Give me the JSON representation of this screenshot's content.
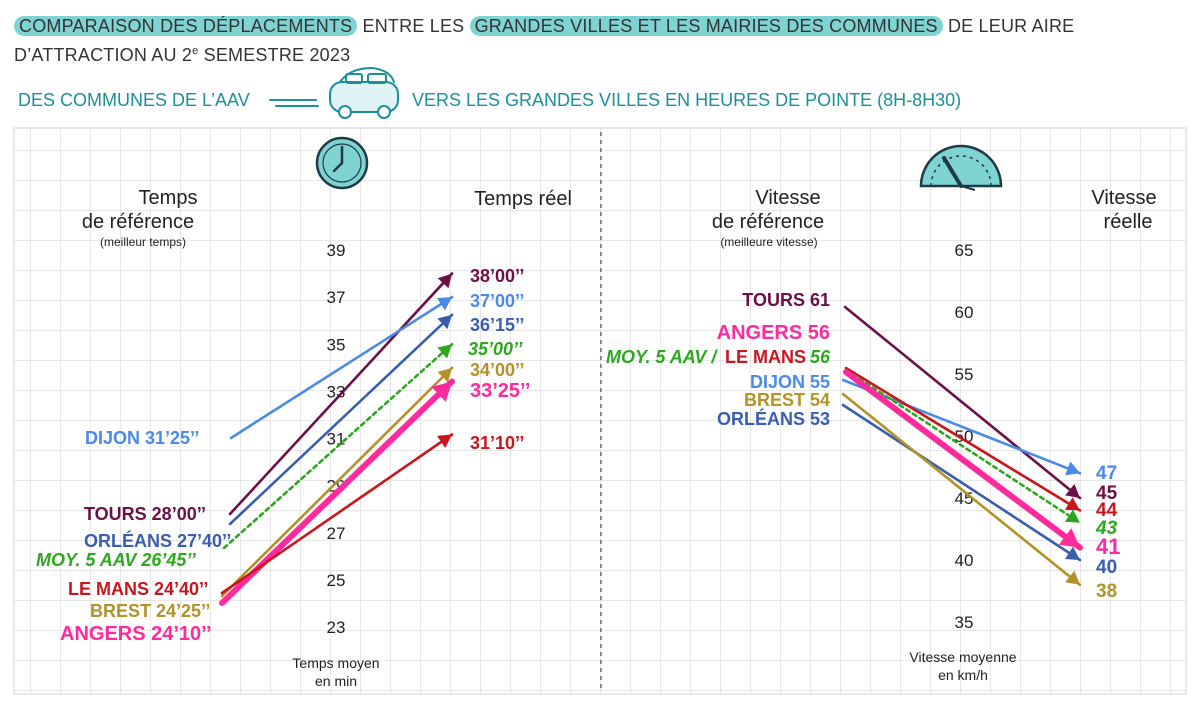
{
  "title": {
    "part1": "COMPARAISON DES DÉPLACEMENTS",
    "part2": " ENTRE LES ",
    "part3": "GRANDES VILLES ET LES MAIRIES DES COMMUNES",
    "part4": " DE LEUR AIRE D’ATTRACTION AU 2",
    "sup": "e",
    "part5": " SEMESTRE 2023"
  },
  "subtitle": {
    "left": "DES COMMUNES DE L’AAV",
    "right": "VERS LES GRANDES VILLES EN HEURES DE POINTE (8H-8H30)"
  },
  "icons": [
    "car-icon",
    "clock-icon",
    "speedometer-icon"
  ],
  "colors": {
    "tours": "#6b1046",
    "angers": "#ff2a9e",
    "moy": "#2da81e",
    "le_mans": "#c8161d",
    "dijon": "#4a8ae8",
    "brest": "#b3922a",
    "orleans": "#3a5dae",
    "accent": "#1b8f9a",
    "highlight": "#7fd3d3"
  },
  "chart_data": [
    {
      "type": "line",
      "headers": {
        "left_title": [
          "Temps",
          "de référence"
        ],
        "left_sub": "(meilleur temps)",
        "right_title": "Temps réel",
        "axis_label": [
          "Temps moyen",
          "en min"
        ]
      },
      "ylim": [
        23,
        39
      ],
      "ticks": [
        "39",
        "37",
        "35",
        "33",
        "31",
        "29",
        "27",
        "25",
        "23"
      ],
      "series": [
        {
          "key": "tours",
          "name": "TOURS",
          "start": 28.0,
          "end": 38.0,
          "start_label": "TOURS 28’00’’",
          "end_label": "38’00’’"
        },
        {
          "key": "dijon",
          "name": "DIJON",
          "start": 31.42,
          "end": 37.0,
          "start_label": "DIJON 31’25’’",
          "end_label": "37’00’’"
        },
        {
          "key": "orleans",
          "name": "ORLÉANS",
          "start": 27.67,
          "end": 36.25,
          "start_label": "ORLÉANS 27’40’’",
          "end_label": "36’15’’"
        },
        {
          "key": "moy",
          "name": "MOY. 5 AAV",
          "start": 26.75,
          "end": 35.0,
          "start_label": "MOY. 5 AAV 26’45’’",
          "end_label": "35’00’’",
          "dashed": true
        },
        {
          "key": "brest",
          "name": "BREST",
          "start": 24.42,
          "end": 34.0,
          "start_label": "BREST 24’25’’",
          "end_label": "34’00’’"
        },
        {
          "key": "angers",
          "name": "ANGERS",
          "start": 24.17,
          "end": 33.42,
          "start_label": "ANGERS 24’10’’",
          "end_label": "33’25’’",
          "bold": true
        },
        {
          "key": "le_mans",
          "name": "LE MANS",
          "start": 24.67,
          "end": 31.17,
          "start_label": "LE MANS 24’40’’",
          "end_label": "31’10’’"
        }
      ]
    },
    {
      "type": "line",
      "headers": {
        "left_title": [
          "Vitesse",
          "de référence"
        ],
        "left_sub": "(meilleure vitesse)",
        "right_title": [
          "Vitesse",
          "réelle"
        ],
        "axis_label": [
          "Vitesse moyenne",
          "en km/h"
        ]
      },
      "ylim": [
        35,
        65
      ],
      "ticks": [
        "65",
        "60",
        "55",
        "50",
        "45",
        "40",
        "35"
      ],
      "start_labels": {
        "tours": "TOURS 61",
        "angers": "ANGERS 56",
        "moy": "MOY. 5 AAV /",
        "le_mans": "LE MANS",
        "moy_lemans_value": "56",
        "dijon": "DIJON 55",
        "brest": "BREST 54",
        "orleans": "ORLÉANS 53"
      },
      "series": [
        {
          "key": "tours",
          "name": "TOURS",
          "start": 61,
          "end": 45,
          "end_label": "45"
        },
        {
          "key": "dijon",
          "name": "DIJON",
          "start": 55,
          "end": 47,
          "end_label": "47"
        },
        {
          "key": "le_mans",
          "name": "LE MANS",
          "start": 56,
          "end": 44,
          "end_label": "44"
        },
        {
          "key": "moy",
          "name": "MOY. 5 AAV",
          "start": 56,
          "end": 43,
          "end_label": "43",
          "dashed": true
        },
        {
          "key": "angers",
          "name": "ANGERS",
          "start": 56,
          "end": 41,
          "end_label": "41",
          "bold": true
        },
        {
          "key": "orleans",
          "name": "ORLÉANS",
          "start": 53,
          "end": 40,
          "end_label": "40"
        },
        {
          "key": "brest",
          "name": "BREST",
          "start": 54,
          "end": 38,
          "end_label": "38"
        }
      ]
    }
  ]
}
